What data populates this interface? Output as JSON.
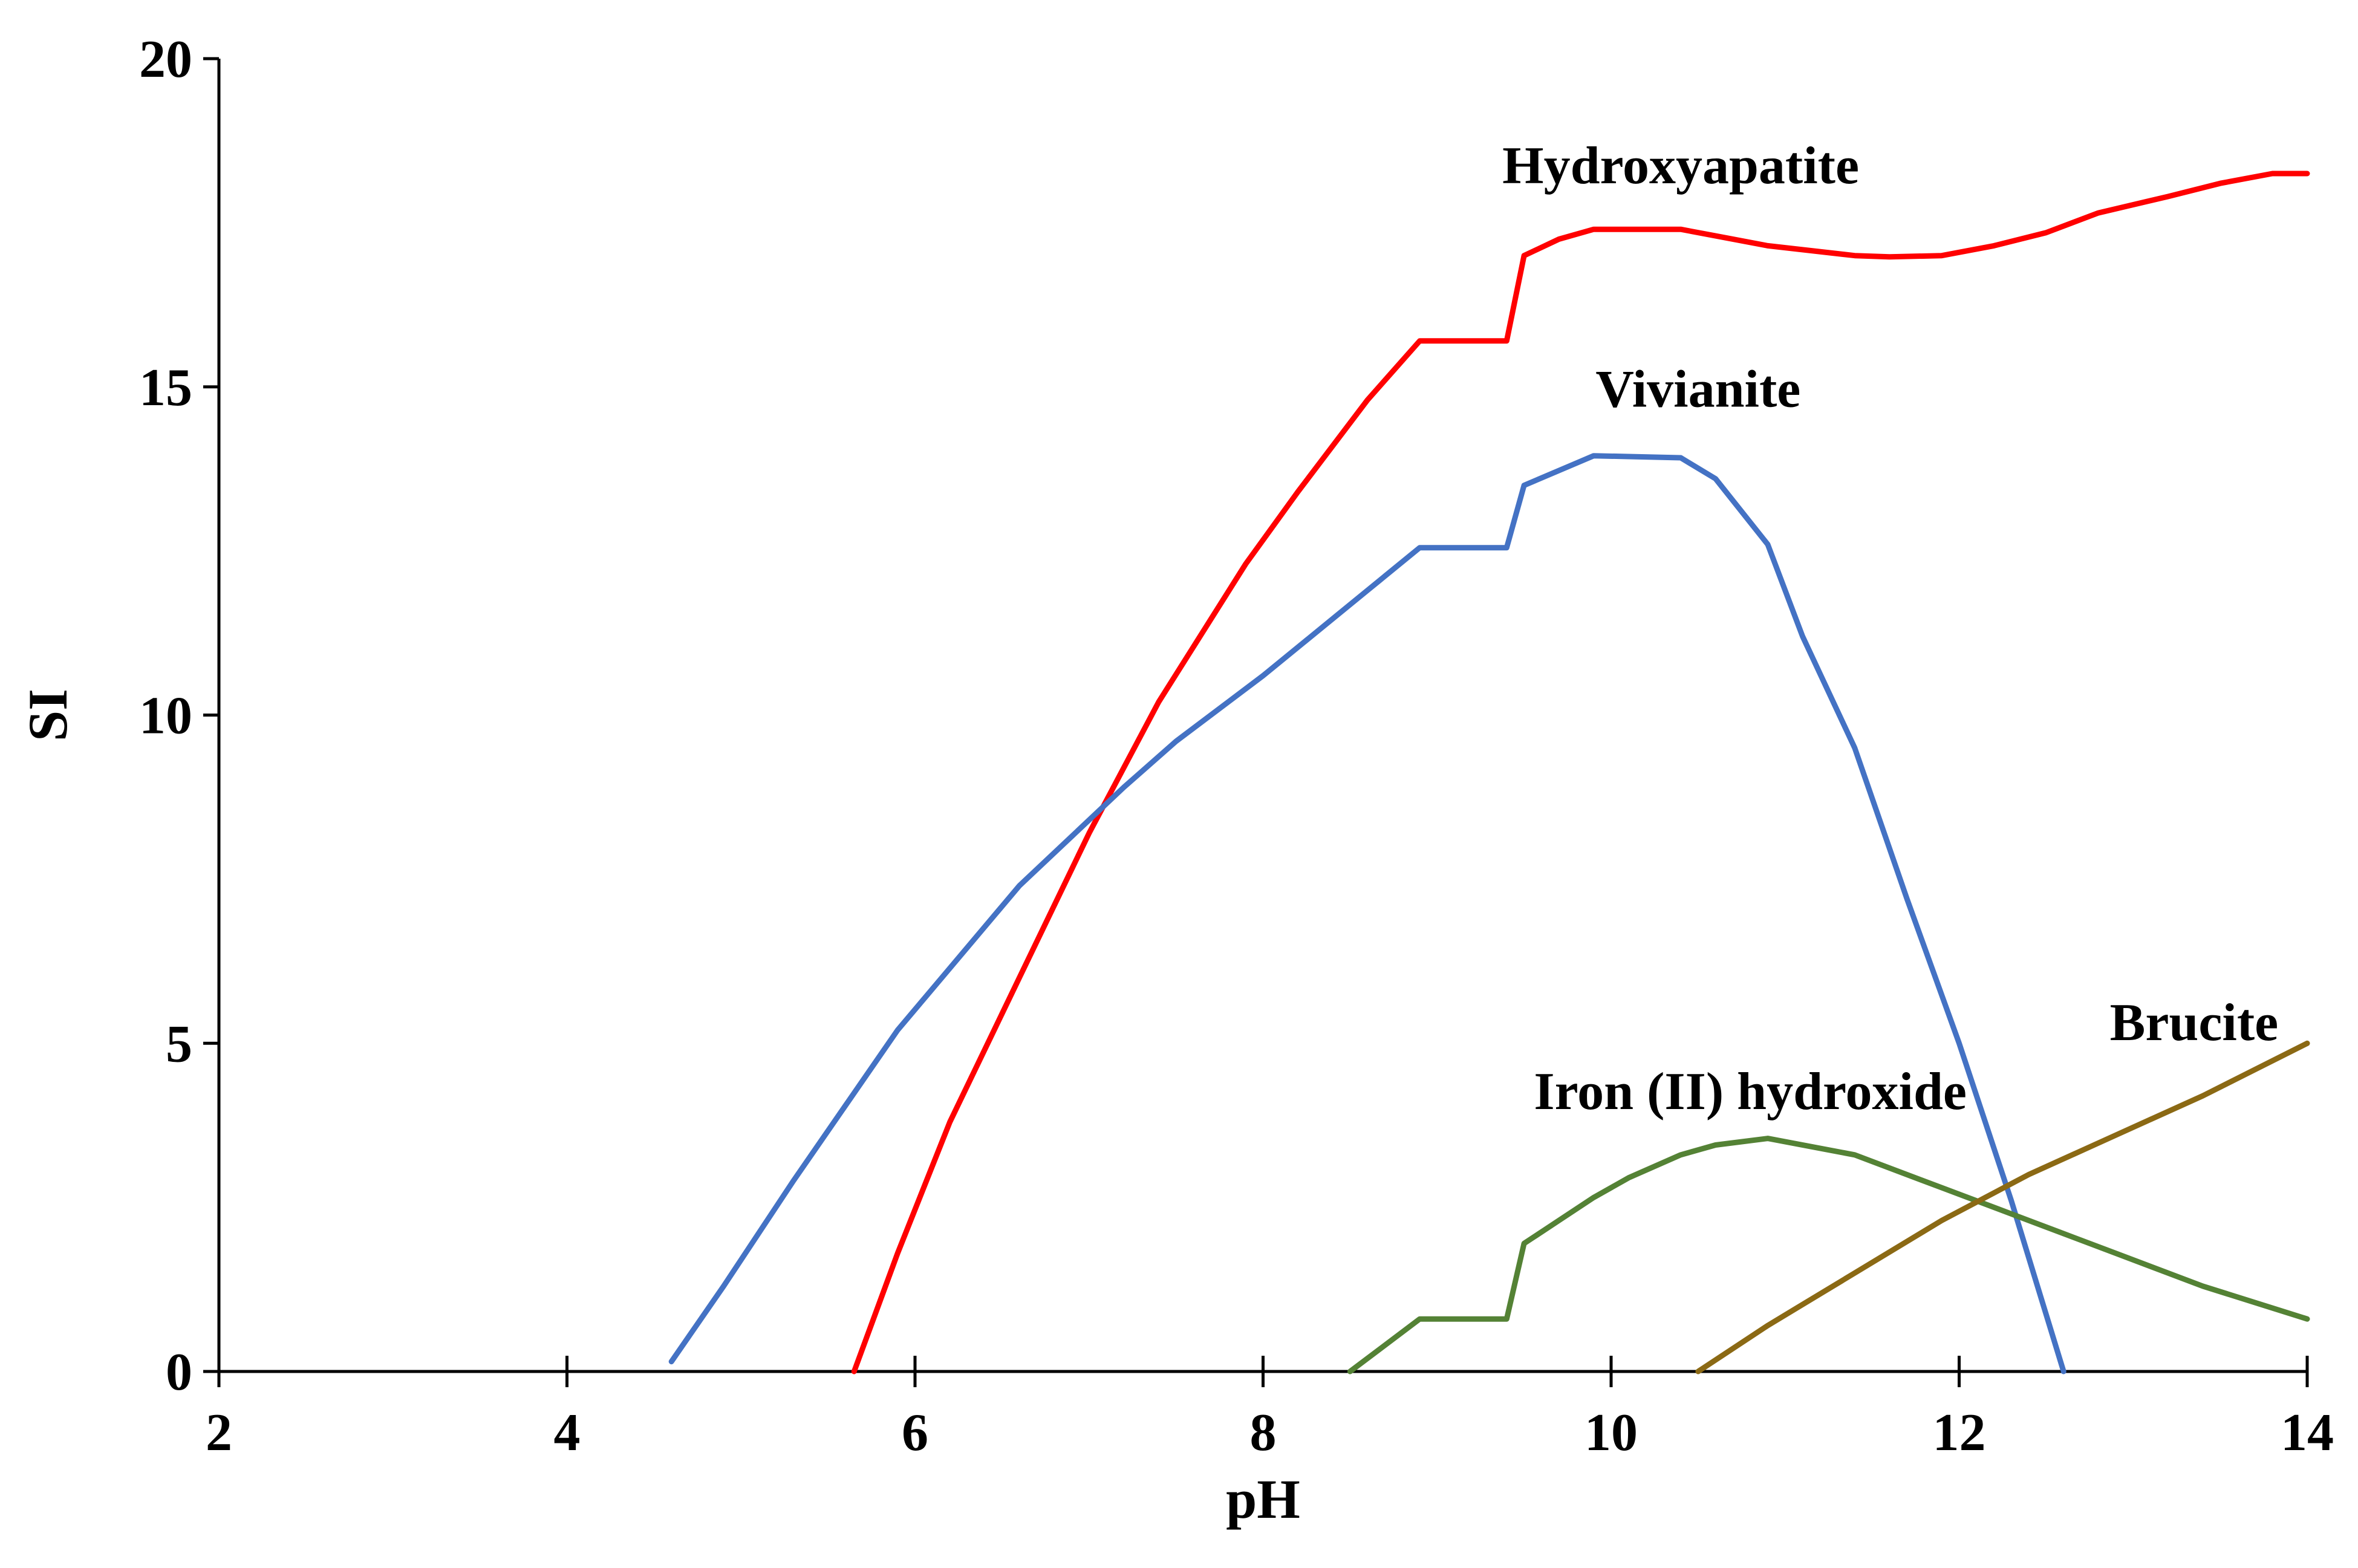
{
  "chart_data": {
    "type": "line",
    "title": "",
    "xlabel": "pH",
    "ylabel": "SI",
    "xlim": [
      2,
      14
    ],
    "ylim": [
      0,
      20
    ],
    "xticks": [
      2,
      4,
      6,
      8,
      10,
      12,
      14
    ],
    "yticks": [
      0,
      5,
      10,
      15,
      20
    ],
    "grid": false,
    "legend": "none (series labeled directly on plot)",
    "series": [
      {
        "name": "Hydroxyapatite",
        "color": "#ff0000",
        "x": [
          5.65,
          5.9,
          6.2,
          6.6,
          7.0,
          7.4,
          7.9,
          8.2,
          8.6,
          8.9,
          9.0,
          9.4,
          9.5,
          9.7,
          9.9,
          10.1,
          10.4,
          10.6,
          10.9,
          11.4,
          11.6,
          11.9,
          12.2,
          12.5,
          12.8,
          13.2,
          13.5,
          13.8,
          14.0
        ],
        "y": [
          0.0,
          1.8,
          3.8,
          6.0,
          8.2,
          10.2,
          12.3,
          13.4,
          14.8,
          15.7,
          15.7,
          15.7,
          17.0,
          17.25,
          17.4,
          17.4,
          17.4,
          17.3,
          17.15,
          17.0,
          16.98,
          17.0,
          17.15,
          17.35,
          17.65,
          17.9,
          18.1,
          18.25,
          18.25
        ]
      },
      {
        "name": "Vivianite",
        "color": "#4472c4",
        "x": [
          4.6,
          4.9,
          5.3,
          5.9,
          6.6,
          7.2,
          7.5,
          8.0,
          8.6,
          8.9,
          9.0,
          9.4,
          9.5,
          9.9,
          10.4,
          10.6,
          10.9,
          11.1,
          11.4,
          11.7,
          12.0,
          12.3,
          12.6
        ],
        "y": [
          0.15,
          1.3,
          2.9,
          5.2,
          7.4,
          8.9,
          9.6,
          10.6,
          11.9,
          12.55,
          12.55,
          12.55,
          13.5,
          13.95,
          13.92,
          13.6,
          12.6,
          11.2,
          9.5,
          7.2,
          5.0,
          2.6,
          0.0
        ]
      },
      {
        "name": "Iron (II) hydroxide",
        "color": "#548235",
        "x": [
          8.5,
          8.9,
          9.0,
          9.4,
          9.5,
          9.7,
          9.9,
          10.1,
          10.4,
          10.6,
          10.9,
          11.4,
          11.9,
          12.4,
          12.9,
          13.4,
          14.0
        ],
        "y": [
          0.0,
          0.8,
          0.8,
          0.8,
          1.95,
          2.3,
          2.65,
          2.95,
          3.3,
          3.45,
          3.55,
          3.3,
          2.8,
          2.3,
          1.8,
          1.3,
          0.8
        ]
      },
      {
        "name": "Brucite",
        "color": "#8b6914",
        "x": [
          10.5,
          10.9,
          11.4,
          11.9,
          12.4,
          12.9,
          13.4,
          14.0
        ],
        "y": [
          0.0,
          0.7,
          1.5,
          2.3,
          3.0,
          3.6,
          4.2,
          5.0
        ]
      }
    ],
    "annotations": [
      {
        "text": "Hydroxyapatite",
        "x": 10.4,
        "y": 18.1
      },
      {
        "text": "Vivianite",
        "x": 10.5,
        "y": 14.7
      },
      {
        "text": "Iron (II) hydroxide",
        "x": 10.8,
        "y": 4.0
      },
      {
        "text": "Brucite",
        "x": 13.35,
        "y": 5.05
      }
    ]
  }
}
